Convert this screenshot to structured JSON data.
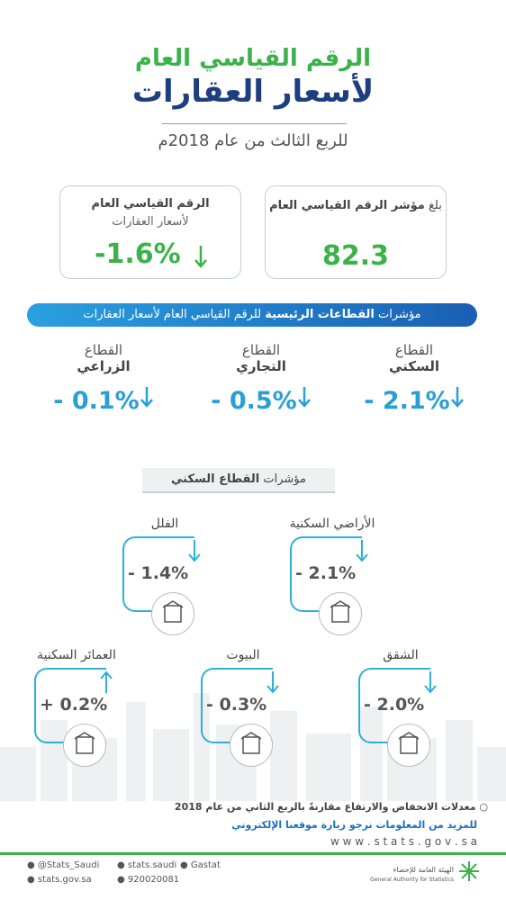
{
  "title": {
    "line1": "الرقم القياسي العام",
    "line2": "لأسعار العقارات",
    "subtitle": "للربع الثالث من عام 2018م"
  },
  "cards": [
    {
      "prefix": "بلغ",
      "label": "مؤشر الرقم القياسي العام",
      "value": "82.3"
    },
    {
      "label": "الرقم القياسي العام",
      "sublabel": "لأسعار العقارات",
      "value": "-1.6%"
    }
  ],
  "sectors": {
    "banner": {
      "prefix": "مؤشرات",
      "bold": "القطاعات الرئيسية",
      "suffix": "للرقم القياسي العام لأسعار العقارات"
    },
    "items": [
      {
        "line1": "القطاع",
        "line2": "السكني",
        "value": "- 2.1%"
      },
      {
        "line1": "القطاع",
        "line2": "التجاري",
        "value": "- 0.5%"
      },
      {
        "line1": "القطاع",
        "line2": "الزراعي",
        "value": "- 0.1%"
      }
    ]
  },
  "residential": {
    "header": {
      "prefix": "مؤشرات",
      "bold": "القطاع السكني"
    },
    "items": [
      {
        "label": "الأراضي السكنية",
        "value": "- 2.1%"
      },
      {
        "label": "الفلل",
        "value": "- 1.4%"
      },
      {
        "label": "الشقق",
        "value": "- 2.0%"
      },
      {
        "label": "البيوت",
        "value": "- 0.3%"
      },
      {
        "label": "العمائر السكنية",
        "value": "+ 0.2%"
      }
    ]
  },
  "footer": {
    "note": "معدلات الانخفاض والارتفاع مقارنةً بالربع الثاني من عام 2018",
    "more": "للمزيد من المعلومات نرجو زيارة موقعنا الإلكتروني",
    "url": "w w w . s t a t s . g o v . s a",
    "contacts": [
      "@Stats_Saudi",
      "stats.saudi",
      "Gastat",
      "stats.gov.sa",
      "920020081"
    ],
    "logo": {
      "ar": "الهيئة العامة للإحصاء",
      "en": "General Authority for Statistics"
    }
  }
}
